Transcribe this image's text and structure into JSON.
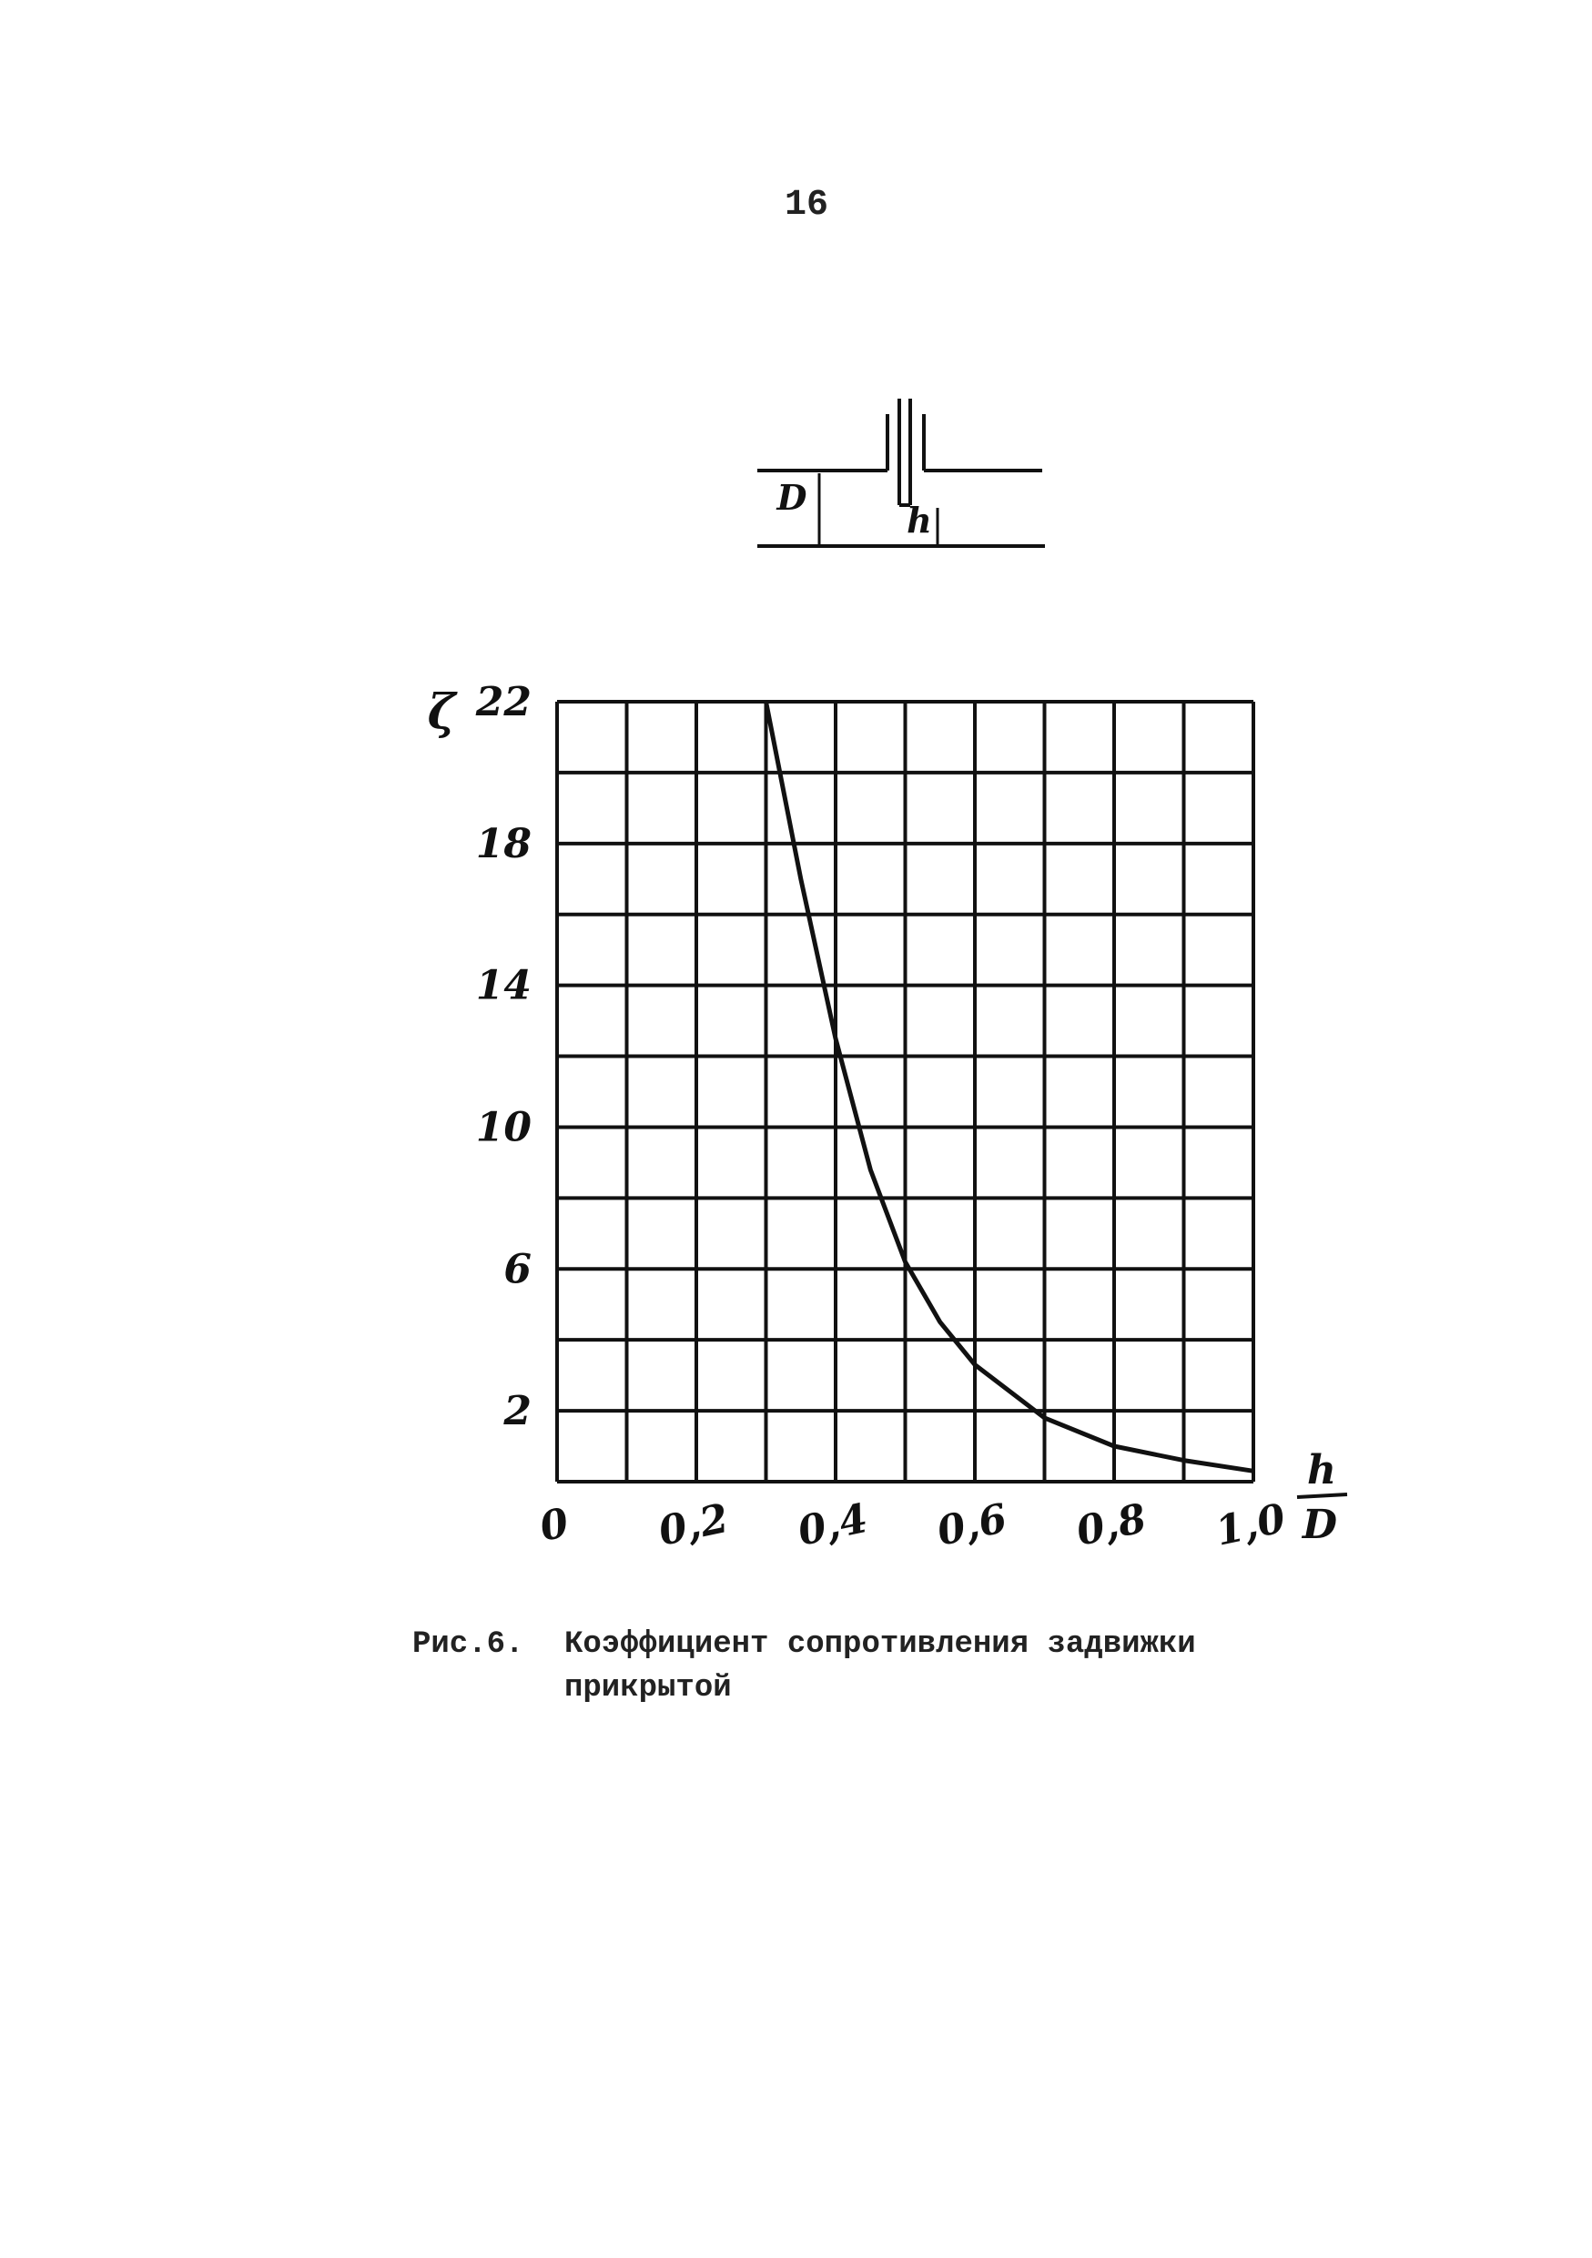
{
  "page_number": "16",
  "diagram": {
    "labels": [
      "D",
      "h"
    ]
  },
  "chart_data": {
    "type": "line",
    "ylabel": "ζ",
    "xlabel": {
      "numerator": "h",
      "denominator": "D"
    },
    "x": [
      0.3,
      0.35,
      0.4,
      0.45,
      0.5,
      0.55,
      0.6,
      0.7,
      0.8,
      0.9,
      1.0
    ],
    "y": [
      22,
      17,
      12.5,
      8.8,
      6.2,
      4.5,
      3.3,
      1.8,
      1.0,
      0.6,
      0.3
    ],
    "color": "#111111",
    "xlim": [
      0,
      1.0
    ],
    "ylim": [
      0,
      22
    ],
    "xticks": [
      0,
      {
        "value": 0.2,
        "label": "0,2"
      },
      {
        "value": 0.4,
        "label": "0,4"
      },
      {
        "value": 0.6,
        "label": "0,6"
      },
      {
        "value": 0.8,
        "label": "0,8"
      },
      {
        "value": 1.0,
        "label": "1,0"
      }
    ],
    "yticks": [
      2,
      6,
      10,
      14,
      18,
      22
    ],
    "xgrid": [
      0,
      0.1,
      0.2,
      0.3,
      0.4,
      0.5,
      0.6,
      0.7,
      0.8,
      0.9,
      1.0
    ],
    "ygrid": [
      0,
      2,
      4,
      6,
      8,
      10,
      12,
      14,
      16,
      18,
      20,
      22
    ],
    "grid": true
  },
  "caption": {
    "label": "Рис.6.",
    "lines": [
      "Коэффициент сопротивления задвижки",
      "прикрытой"
    ]
  }
}
